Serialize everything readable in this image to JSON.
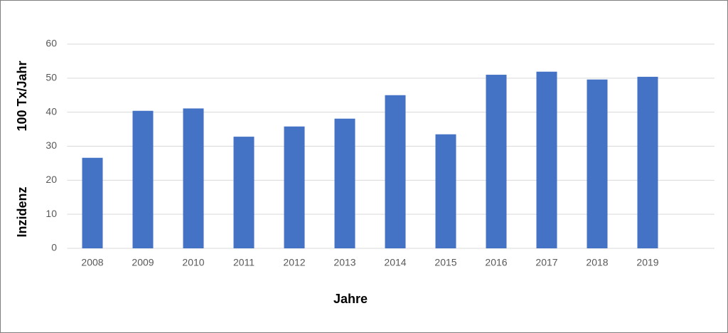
{
  "chart_data": {
    "type": "bar",
    "x_label": "Jahre",
    "y_label": [
      "Inzidenz",
      "100 Tx/Jahr"
    ],
    "categories": [
      "2008",
      "2009",
      "2010",
      "2011",
      "2012",
      "2013",
      "2014",
      "2015",
      "2016",
      "2017",
      "2018",
      "2019",
      null
    ],
    "values": [
      26.6,
      40.4,
      41.1,
      32.8,
      35.8,
      38.1,
      45.0,
      33.5,
      51.0,
      51.9,
      49.6,
      50.4,
      null
    ],
    "color": "#4472c4",
    "ylim": [
      0,
      60
    ],
    "yticks": [
      0,
      10,
      20,
      30,
      40,
      50,
      60
    ],
    "grid": true
  }
}
